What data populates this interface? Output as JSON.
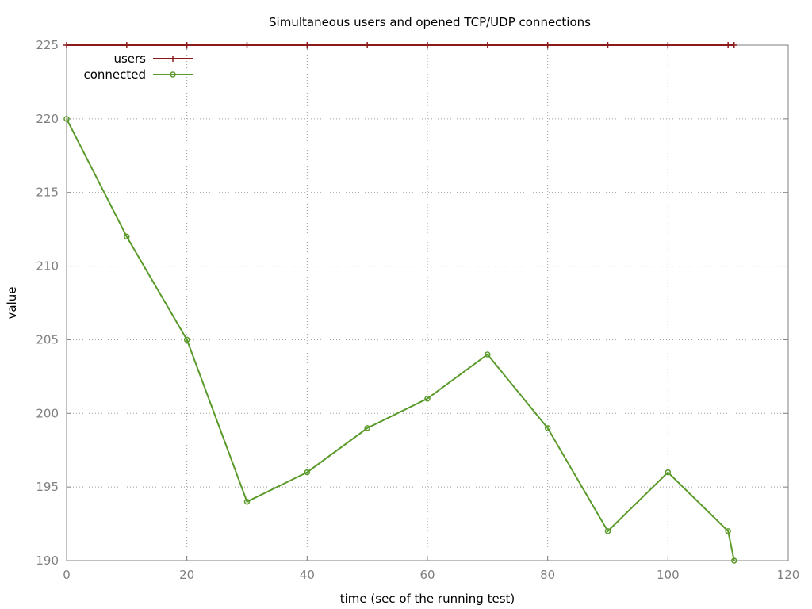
{
  "chart_data": {
    "type": "line",
    "title": "Simultaneous users and opened TCP/UDP connections",
    "xlabel": "time (sec of the running test)",
    "ylabel": "value",
    "xlim": [
      0,
      120
    ],
    "ylim": [
      190,
      225
    ],
    "xticks": [
      0,
      20,
      40,
      60,
      80,
      100,
      120
    ],
    "yticks": [
      190,
      195,
      200,
      205,
      210,
      215,
      220,
      225
    ],
    "grid": true,
    "legend_position": "top-left",
    "series": [
      {
        "name": "users",
        "color": "#8b1a1a",
        "marker": "plus",
        "x": [
          0,
          10,
          20,
          30,
          40,
          50,
          60,
          70,
          80,
          90,
          100,
          110,
          111
        ],
        "y": [
          225,
          225,
          225,
          225,
          225,
          225,
          225,
          225,
          225,
          225,
          225,
          225,
          225
        ]
      },
      {
        "name": "connected",
        "color": "#5a9a2a",
        "marker": "circle",
        "x": [
          0,
          10,
          20,
          30,
          40,
          50,
          60,
          70,
          80,
          90,
          100,
          110,
          111
        ],
        "y": [
          220,
          212,
          205,
          194,
          196,
          199,
          201,
          204,
          199,
          192,
          196,
          192,
          190
        ]
      }
    ]
  }
}
